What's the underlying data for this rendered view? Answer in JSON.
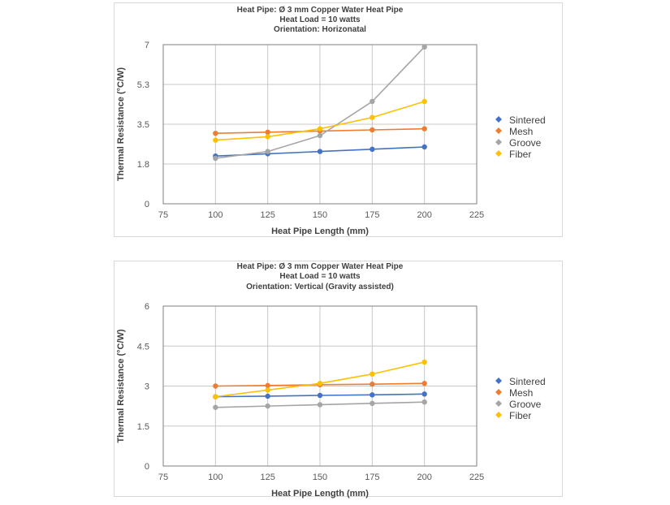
{
  "chart_data": [
    {
      "type": "line",
      "title_lines": [
        "Heat Pipe: Ø 3 mm Copper Water Heat Pipe",
        "Heat Load = 10 watts",
        "Orientation: Horizonatal"
      ],
      "xlabel": "Heat Pipe Length (mm)",
      "ylabel": "Thermal Resistance (°C/W)",
      "xlim": [
        75,
        225
      ],
      "ylim": [
        0,
        7
      ],
      "xticks": [
        "75",
        "100",
        "125",
        "150",
        "175",
        "200",
        "225"
      ],
      "yticks": [
        "0",
        "1.8",
        "3.5",
        "5.3",
        "7"
      ],
      "grid": true,
      "legend_position": "right",
      "x": [
        100,
        125,
        150,
        175,
        200
      ],
      "series": [
        {
          "name": "Sintered",
          "color": "#4472C4",
          "values": [
            2.1,
            2.2,
            2.3,
            2.4,
            2.5
          ]
        },
        {
          "name": "Mesh",
          "color": "#ED7D31",
          "values": [
            3.1,
            3.15,
            3.2,
            3.25,
            3.3
          ]
        },
        {
          "name": "Groove",
          "color": "#A5A5A5",
          "values": [
            2.0,
            2.3,
            3.0,
            4.5,
            6.9
          ]
        },
        {
          "name": "Fiber",
          "color": "#FFC000",
          "values": [
            2.8,
            2.95,
            3.3,
            3.8,
            4.5
          ]
        }
      ]
    },
    {
      "type": "line",
      "title_lines": [
        "Heat Pipe: Ø 3  mm Copper Water Heat Pipe",
        "Heat Load = 10 watts",
        "Orientation: Vertical (Gravity assisted)"
      ],
      "xlabel": "Heat Pipe Length (mm)",
      "ylabel": "Thermal Resistance (°C/W)",
      "xlim": [
        75,
        225
      ],
      "ylim": [
        0,
        6
      ],
      "xticks": [
        "75",
        "100",
        "125",
        "150",
        "175",
        "200",
        "225"
      ],
      "yticks": [
        "0",
        "1.5",
        "3",
        "4.5",
        "6"
      ],
      "grid": true,
      "legend_position": "right",
      "x": [
        100,
        125,
        150,
        175,
        200
      ],
      "series": [
        {
          "name": "Sintered",
          "color": "#4472C4",
          "values": [
            2.6,
            2.62,
            2.65,
            2.67,
            2.7
          ]
        },
        {
          "name": "Mesh",
          "color": "#ED7D31",
          "values": [
            3.0,
            3.02,
            3.05,
            3.07,
            3.1
          ]
        },
        {
          "name": "Groove",
          "color": "#A5A5A5",
          "values": [
            2.2,
            2.25,
            2.3,
            2.35,
            2.4
          ]
        },
        {
          "name": "Fiber",
          "color": "#FFC000",
          "values": [
            2.6,
            2.85,
            3.1,
            3.45,
            3.9
          ]
        }
      ]
    }
  ]
}
